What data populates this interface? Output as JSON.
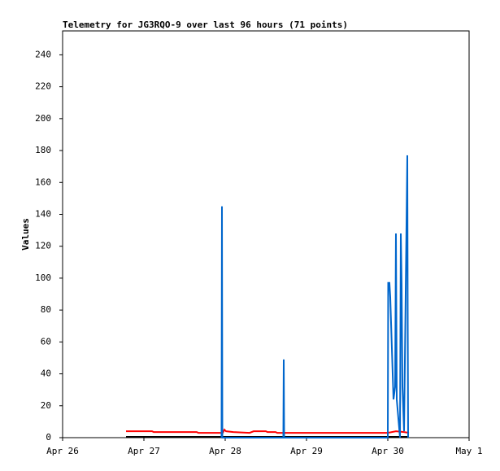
{
  "chart_data": {
    "type": "line",
    "title": "Telemetry for JG3RQO-9 over last 96 hours (71 points)",
    "y_label": "Values",
    "xlim": [
      0,
      5
    ],
    "xticks": [
      {
        "value": 0,
        "label": "Apr 26"
      },
      {
        "value": 1,
        "label": "Apr 27"
      },
      {
        "value": 2,
        "label": "Apr 28"
      },
      {
        "value": 3,
        "label": "Apr 29"
      },
      {
        "value": 4,
        "label": "Apr 30"
      },
      {
        "value": 5,
        "label": "May 1"
      }
    ],
    "ylim": [
      0,
      255
    ],
    "yticks": [
      0,
      20,
      40,
      60,
      80,
      100,
      120,
      140,
      160,
      180,
      200,
      220,
      240
    ],
    "grid": false,
    "series": [
      {
        "color": "#000000",
        "x": [
          0.78,
          4.26
        ],
        "values": [
          0.5,
          0.5
        ]
      },
      {
        "color": "#ff0000",
        "x": [
          0.78,
          1.1,
          1.12,
          1.65,
          1.67,
          1.97,
          1.99,
          2.01,
          2.1,
          2.3,
          2.35,
          2.5,
          2.52,
          2.62,
          2.64,
          4.0,
          4.1,
          4.2,
          4.26
        ],
        "values": [
          4,
          4,
          3.5,
          3.5,
          3,
          3,
          5,
          4,
          3.5,
          3,
          4,
          4,
          3.5,
          3.5,
          3,
          3,
          4,
          3.5,
          3
        ]
      },
      {
        "color": "#0066cc",
        "x": [
          1.955,
          1.96,
          1.965,
          2.715,
          2.72,
          2.725,
          4.0,
          4.005,
          4.02,
          4.03,
          4.04,
          4.05,
          4.06,
          4.07,
          4.09,
          4.1,
          4.11,
          4.15,
          4.16,
          4.17,
          4.18,
          4.2,
          4.24,
          4.245,
          4.25
        ],
        "values": [
          0,
          145,
          0,
          0,
          49,
          0,
          0,
          97,
          97,
          88,
          72,
          56,
          40,
          24,
          32,
          128,
          24,
          0,
          128,
          96,
          32,
          4,
          177,
          72,
          0
        ]
      }
    ]
  }
}
